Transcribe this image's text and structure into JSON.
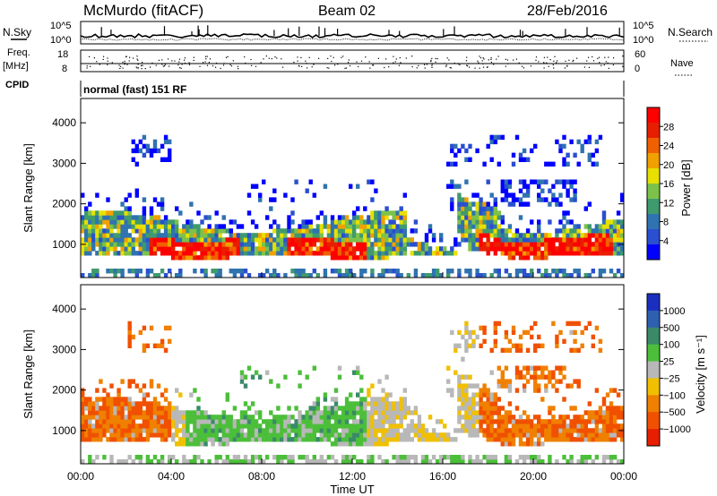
{
  "header": {
    "title": "McMurdo (fitACF)",
    "beam": "Beam 02",
    "date": "28/Feb/2016"
  },
  "top_panels": {
    "nsky_label": "N.Sky",
    "nsearch_label": "N.Search",
    "nsky_ticks": [
      "10^5",
      "10^0"
    ],
    "nsearch_ticks": [
      "10^5",
      "10^0"
    ],
    "freq_label_line1": "Freq.",
    "freq_label_line2": "[MHz]",
    "freq_ticks": [
      "18",
      "8"
    ],
    "nave_label": "Nave",
    "nave_ticks": [
      "60",
      "0"
    ],
    "cpid_label": "CPID",
    "cpid_text": "normal (fast) 151 RF"
  },
  "chart_data": [
    {
      "type": "heatmap",
      "name": "power-panel",
      "ylabel": "Slant Range [km]",
      "ylim": [
        180,
        4600
      ],
      "yticks": [
        "1000",
        "2000",
        "3000",
        "4000"
      ],
      "xlim_hours": [
        0,
        24
      ],
      "colorbar_label": "Power [dB]",
      "colorbar_ticks": [
        "28",
        "24",
        "20",
        "16",
        "12",
        "8",
        "4"
      ],
      "colors": [
        "#0000ff",
        "#2a4fd0",
        "#2f73b0",
        "#3f9a6e",
        "#7cc24a",
        "#e8e000",
        "#f0a000",
        "#f06000",
        "#e81e00",
        "#ff0000"
      ]
    },
    {
      "type": "heatmap",
      "name": "velocity-panel",
      "ylabel": "Slant Range [km]",
      "ylim": [
        180,
        4600
      ],
      "yticks": [
        "1000",
        "2000",
        "3000",
        "4000"
      ],
      "xlim_hours": [
        0,
        24
      ],
      "xlabel": "Time UT",
      "xticks": [
        "00:00",
        "04:00",
        "08:00",
        "12:00",
        "16:00",
        "20:00",
        "00:00"
      ],
      "colorbar_label": "Velocity [m s⁻¹]",
      "colorbar_ticks": [
        "1000",
        "500",
        "100",
        "25",
        "−25",
        "−100",
        "−500",
        "−1000"
      ],
      "colors": [
        "#1a2fc0",
        "#2e5fb0",
        "#3a8a6a",
        "#4cbf3a",
        "#b8b8b8",
        "#f0c000",
        "#f08000",
        "#f05000",
        "#e81e00"
      ]
    }
  ]
}
